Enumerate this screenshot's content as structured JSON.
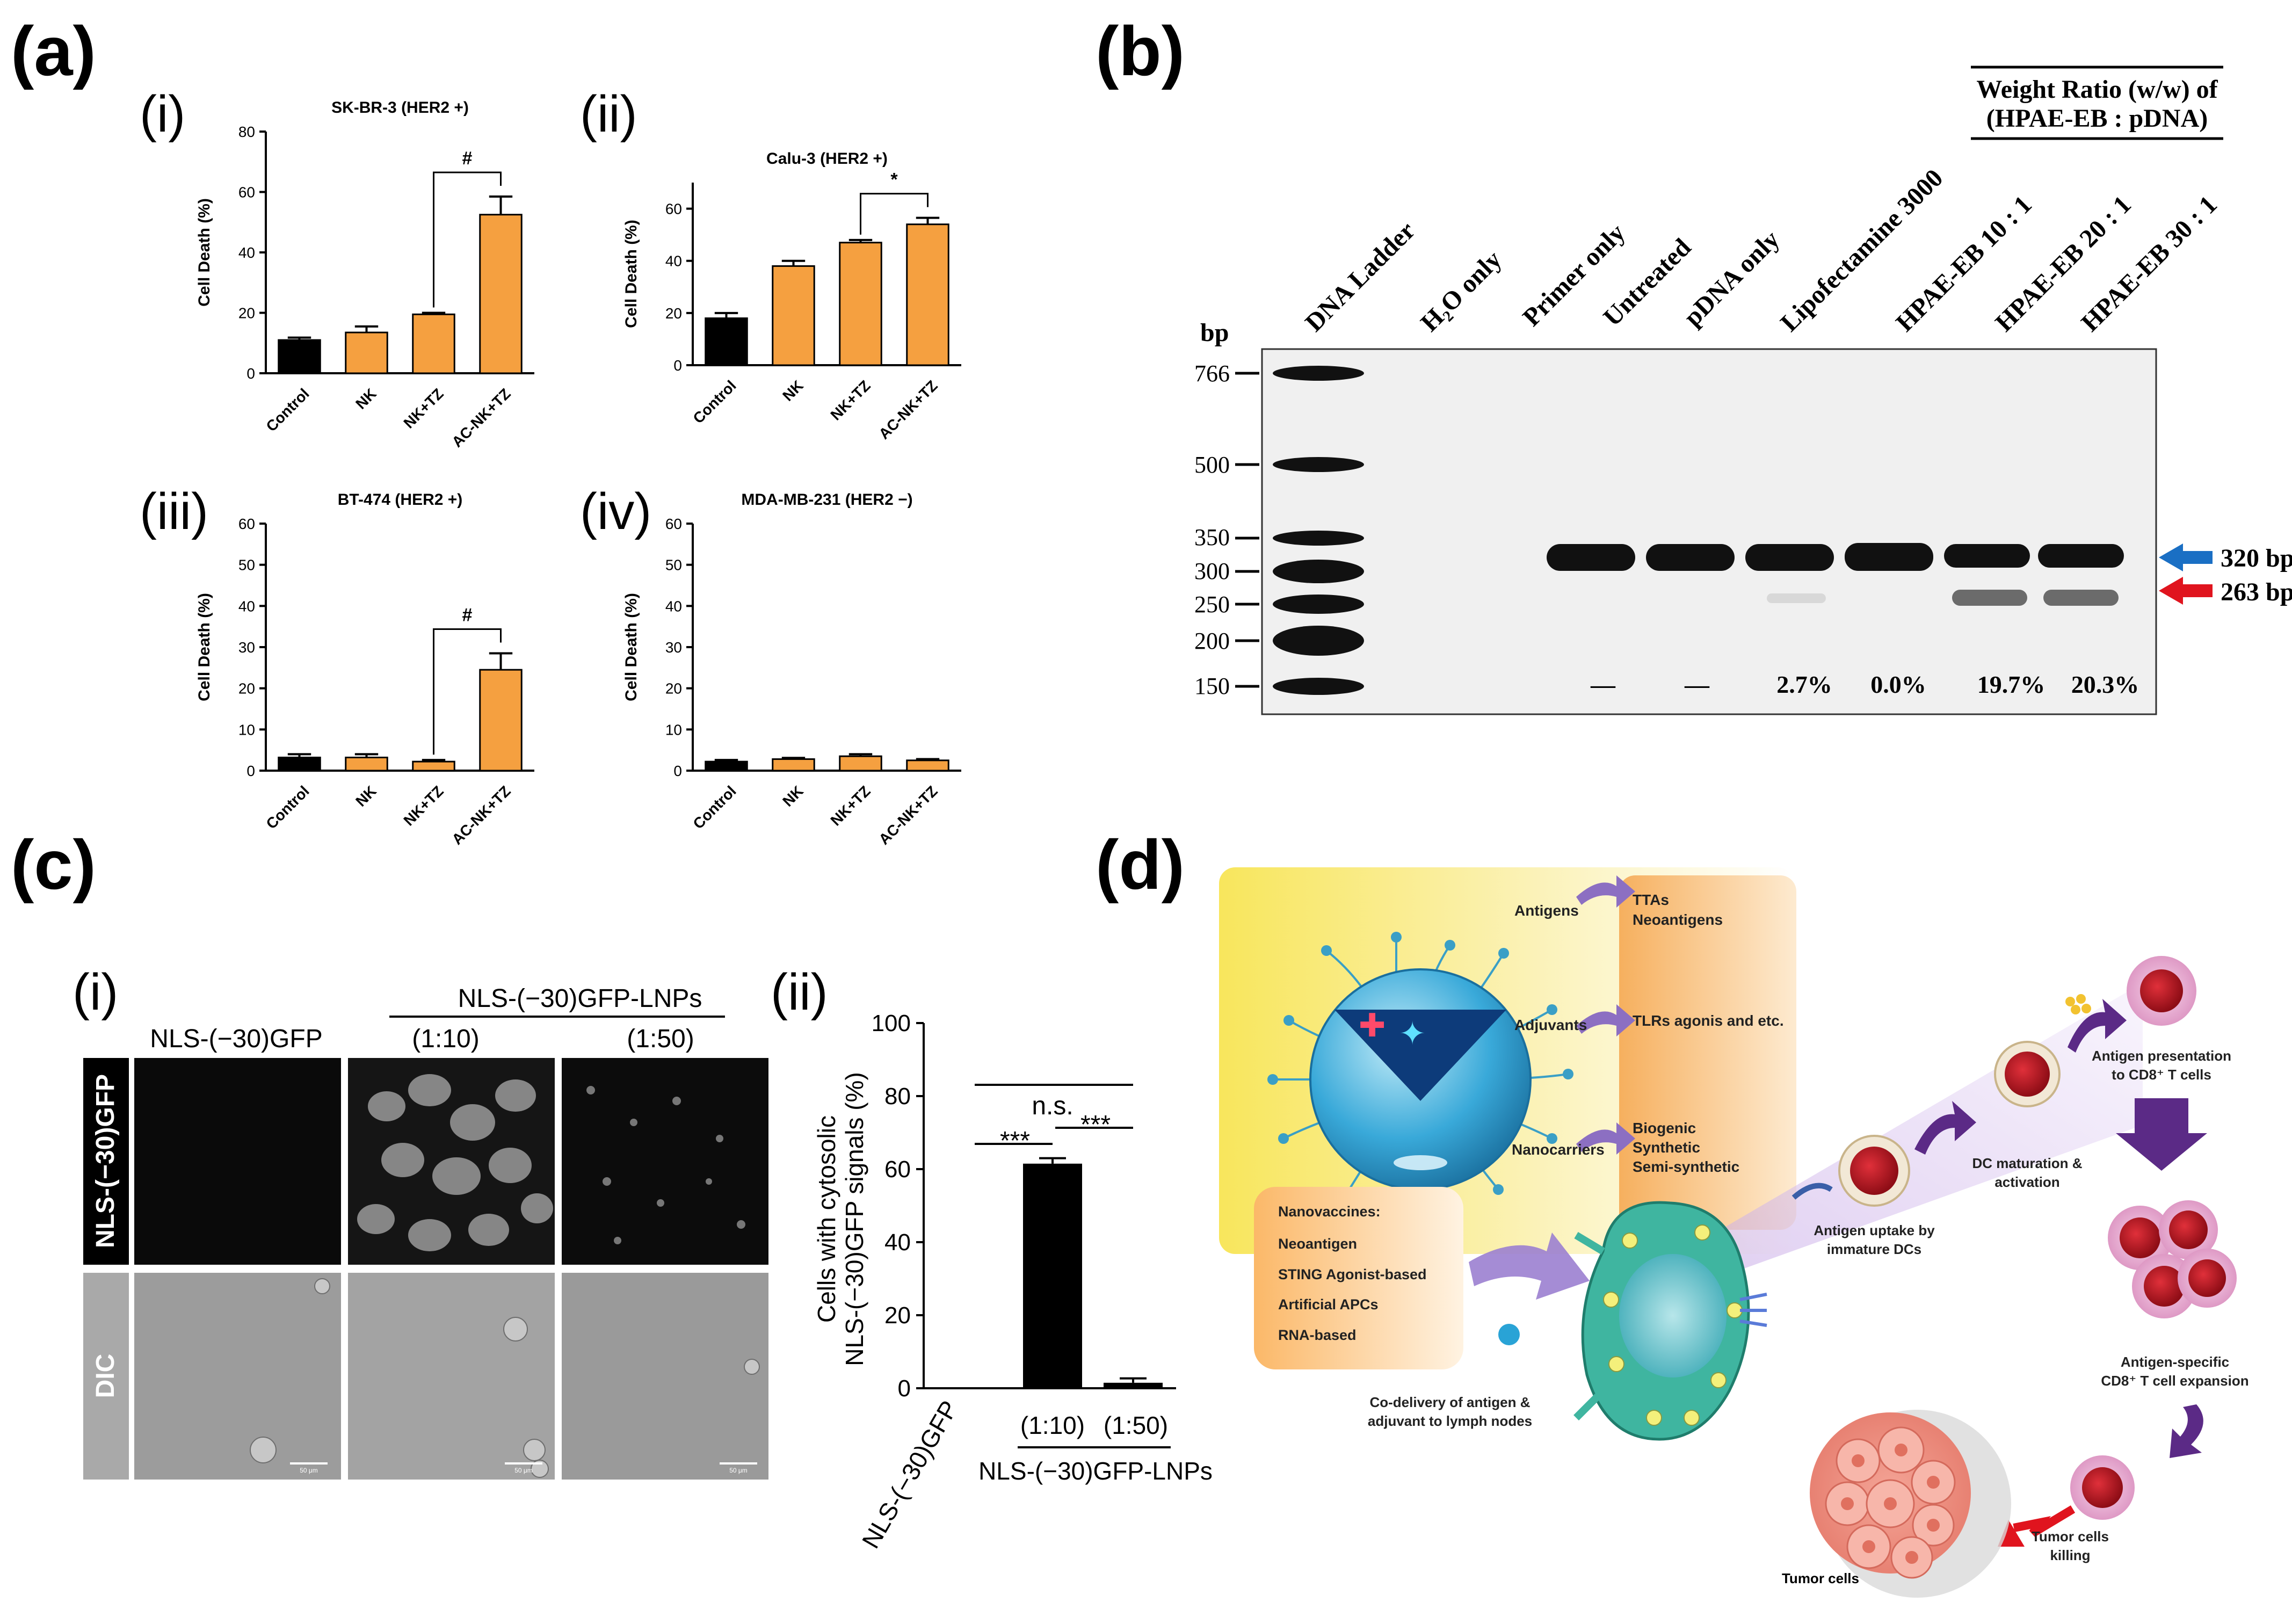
{
  "panel_labels": {
    "a": "(a)",
    "b": "(b)",
    "c": "(c)",
    "d": "(d)"
  },
  "panel_a": {
    "subpanel_labels": [
      "(i)",
      "(ii)",
      "(iii)",
      "(iv)"
    ],
    "subpanel_titles": [
      "SK-BR-3 (HER2 +)",
      "Calu-3 (HER2 +)",
      "BT-474 (HER2 +)",
      "MDA-MB-231 (HER2 −)"
    ],
    "ylabel": "Cell Death (%)",
    "significance": [
      "#",
      "*",
      "#"
    ]
  },
  "panel_b": {
    "weight_ratio_header_line1": "Weight Ratio (w/w) of",
    "weight_ratio_header_line2": "(HPAE-EB : pDNA)",
    "bp_label": "bp",
    "lanes": [
      "DNA Ladder",
      "H₂O only",
      "Primer only",
      "Untreated",
      "pDNA only",
      "Lipofectamine 3000",
      "HPAE-EB 10 : 1",
      "HPAE-EB  20 : 1",
      "HPAE-EB 30 : 1"
    ],
    "ladder_sizes": [
      "766",
      "500",
      "350",
      "300",
      "250",
      "200",
      "150"
    ],
    "band_labels": [
      "320 bp",
      "263 bp"
    ],
    "arrow_colors": {
      "band_320": "#1a6fc4",
      "band_263": "#e0141e"
    },
    "percentages": [
      "—",
      "—",
      "2.7%",
      "0.0%",
      "19.7%",
      "20.3%"
    ]
  },
  "panel_c": {
    "subpanel_labels": [
      "(i)",
      "(ii)"
    ],
    "group_header": "NLS-(−30)GFP-LNPs",
    "column_headers": [
      "NLS-(−30)GFP",
      "(1:10)",
      "(1:50)"
    ],
    "row_labels": [
      "NLS-(−30)GFP",
      "DIC"
    ],
    "scale_bar_label": "50 μm",
    "bar_ylabel_line1": "Cells with cytosolic",
    "bar_ylabel_line2": "NLS-(−30)GFP signals (%)",
    "bar_significance": [
      "n.s.",
      "***",
      "***"
    ],
    "bar_xlabels": [
      "NLS-(−30)GFP",
      "(1:10)",
      "(1:50)"
    ],
    "bar_group_label": "NLS-(−30)GFP-LNPs"
  },
  "panel_d": {
    "targets": [
      "Antigens",
      "Adjuvants",
      "Nanocarriers"
    ],
    "target_details": [
      [
        "TTAs",
        "Neoantigens"
      ],
      [
        "TLRs agonis and etc."
      ],
      [
        "Biogenic",
        "Synthetic",
        "Semi-synthetic"
      ]
    ],
    "nanovaccines_title": "Nanovaccines:",
    "nanovaccines": [
      "Neoantigen",
      "STING Agonist-based",
      "Artificial APCs",
      "RNA-based"
    ],
    "lymph_caption_line1": "Co-delivery of antigen &",
    "lymph_caption_line2": "adjuvant to lymph nodes",
    "uptake_line1": "Antigen uptake by",
    "uptake_line2": "immature DCs",
    "maturation_line1": "DC maturation &",
    "maturation_line2": "activation",
    "presentation_line1": "Antigen presentation",
    "presentation_line2": "to CD8⁺ T cells",
    "expansion_line1": "Antigen-specific",
    "expansion_line2": "CD8⁺ T cell expansion",
    "killing_line1": "Tumor cells",
    "killing_line2": "killing",
    "tumor_label": "Tumor cells",
    "colors": {
      "purple": "#5b2a86",
      "orange": "#f5a34a",
      "cell_red": "#b3121f",
      "lymph_green": "#4dbf9a",
      "sphere_blue": "#29a3d6"
    }
  },
  "chart_data": [
    {
      "type": "bar",
      "title": "SK-BR-3 (HER2 +)",
      "ylabel": "Cell Death (%)",
      "categories": [
        "Control",
        "NK",
        "NK+TZ",
        "AC-NK+TZ"
      ],
      "values": [
        11,
        13.5,
        19.5,
        52.5
      ],
      "errors": [
        0.8,
        2,
        0.5,
        6
      ],
      "colors": [
        "#000000",
        "#f5a040",
        "#f5a040",
        "#f5a040"
      ],
      "ylim": [
        0,
        80
      ],
      "yticks": [
        0,
        20,
        40,
        60,
        80
      ],
      "significance": {
        "pair": [
          "NK+TZ",
          "AC-NK+TZ"
        ],
        "label": "#"
      }
    },
    {
      "type": "bar",
      "title": "Calu-3 (HER2 +)",
      "ylabel": "Cell Death  (%)",
      "categories": [
        "Control",
        "NK",
        "NK+TZ",
        "AC-NK+TZ"
      ],
      "values": [
        18,
        38,
        47,
        54
      ],
      "errors": [
        2,
        2,
        1,
        2.5
      ],
      "colors": [
        "#000000",
        "#f5a040",
        "#f5a040",
        "#f5a040"
      ],
      "ylim": [
        0,
        70
      ],
      "yticks": [
        0,
        20,
        40,
        60
      ],
      "significance": {
        "pair": [
          "NK+TZ",
          "AC-NK+TZ"
        ],
        "label": "*"
      }
    },
    {
      "type": "bar",
      "title": "BT-474 (HER2 +)",
      "ylabel": "Cell Death (%)",
      "categories": [
        "Control",
        "NK",
        "NK+TZ",
        "AC-NK+TZ"
      ],
      "values": [
        3.2,
        3.2,
        2.2,
        24.5
      ],
      "errors": [
        0.8,
        0.8,
        0.4,
        4
      ],
      "colors": [
        "#000000",
        "#f5a040",
        "#f5a040",
        "#f5a040"
      ],
      "ylim": [
        0,
        60
      ],
      "yticks": [
        0,
        10,
        20,
        30,
        40,
        50,
        60
      ],
      "significance": {
        "pair": [
          "NK+TZ",
          "AC-NK+TZ"
        ],
        "label": "#"
      }
    },
    {
      "type": "bar",
      "title": "MDA-MB-231 (HER2 −)",
      "ylabel": "Cell Death (%)",
      "categories": [
        "Control",
        "NK",
        "NK+TZ",
        "AC-NK+TZ"
      ],
      "values": [
        2.2,
        2.8,
        3.5,
        2.5
      ],
      "errors": [
        0.4,
        0.3,
        0.5,
        0.3
      ],
      "colors": [
        "#000000",
        "#f5a040",
        "#f5a040",
        "#f5a040"
      ],
      "ylim": [
        0,
        60
      ],
      "yticks": [
        0,
        10,
        20,
        30,
        40,
        50,
        60
      ],
      "significance": null
    },
    {
      "type": "bar",
      "title": "",
      "ylabel": "Cells with cytosolic NLS-(−30)GFP signals (%)",
      "categories": [
        "NLS-(−30)GFP",
        "(1:10)",
        "(1:50)"
      ],
      "values": [
        0,
        61.5,
        1.5
      ],
      "errors": [
        0,
        1.5,
        1.2
      ],
      "colors": [
        "#000000",
        "#000000",
        "#000000"
      ],
      "ylim": [
        0,
        100
      ],
      "yticks": [
        0,
        20,
        40,
        60,
        80,
        100
      ]
    }
  ]
}
